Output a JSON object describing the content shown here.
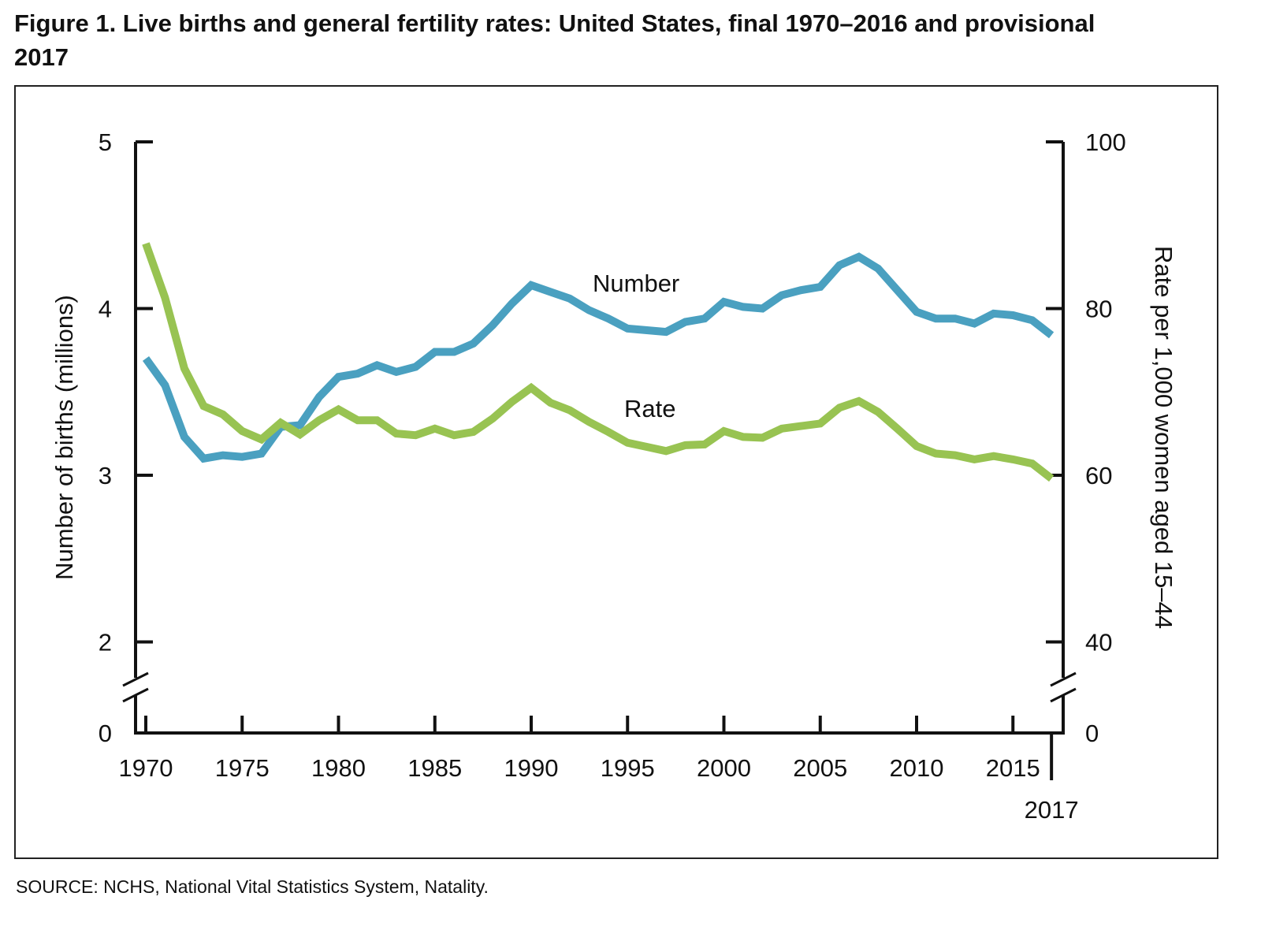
{
  "title": "Figure 1. Live births and general fertility rates: United States, final 1970–2016 and provisional 2017",
  "source": "SOURCE: NCHS, National Vital Statistics System, Natality.",
  "chart_data": {
    "type": "line",
    "title": "Figure 1. Live births and general fertility rates: United States, final 1970–2016 and provisional 2017",
    "xlabel": "",
    "ylabel_left": "Number of births (millions)",
    "ylabel_right": "Rate per 1,000 women aged 15–44",
    "x_ticks": [
      "1970",
      "1975",
      "1980",
      "1985",
      "1990",
      "1995",
      "2000",
      "2005",
      "2010",
      "2015"
    ],
    "x_extra_tick": "2017",
    "y_left_ticks": [
      "0",
      "2",
      "3",
      "4",
      "5"
    ],
    "y_right_ticks": [
      "0",
      "40",
      "60",
      "80",
      "100"
    ],
    "y_left_range": [
      2,
      5
    ],
    "y_right_range": [
      40,
      100
    ],
    "axis_break": true,
    "grid": false,
    "x": [
      1970,
      1971,
      1972,
      1973,
      1974,
      1975,
      1976,
      1977,
      1978,
      1979,
      1980,
      1981,
      1982,
      1983,
      1984,
      1985,
      1986,
      1987,
      1988,
      1989,
      1990,
      1991,
      1992,
      1993,
      1994,
      1995,
      1996,
      1997,
      1998,
      1999,
      2000,
      2001,
      2002,
      2003,
      2004,
      2005,
      2006,
      2007,
      2008,
      2009,
      2010,
      2011,
      2012,
      2013,
      2014,
      2015,
      2016,
      2017
    ],
    "series": [
      {
        "name": "Number",
        "axis": "left",
        "color": "#4aa0c0",
        "values": [
          3.7,
          3.54,
          3.23,
          3.1,
          3.12,
          3.11,
          3.13,
          3.29,
          3.3,
          3.47,
          3.59,
          3.61,
          3.66,
          3.62,
          3.65,
          3.74,
          3.74,
          3.79,
          3.9,
          4.03,
          4.14,
          4.1,
          4.06,
          3.99,
          3.94,
          3.88,
          3.87,
          3.86,
          3.92,
          3.94,
          4.04,
          4.01,
          4.0,
          4.08,
          4.11,
          4.13,
          4.26,
          4.31,
          4.24,
          4.11,
          3.98,
          3.94,
          3.94,
          3.91,
          3.97,
          3.96,
          3.93,
          3.84
        ]
      },
      {
        "name": "Rate",
        "axis": "right",
        "color": "#98c352",
        "values": [
          87.8,
          81.3,
          72.8,
          68.3,
          67.3,
          65.3,
          64.3,
          66.3,
          64.9,
          66.6,
          67.9,
          66.6,
          66.6,
          65.0,
          64.8,
          65.6,
          64.8,
          65.2,
          66.8,
          68.8,
          70.5,
          68.7,
          67.8,
          66.4,
          65.2,
          63.9,
          63.4,
          62.9,
          63.6,
          63.7,
          65.3,
          64.6,
          64.5,
          65.6,
          65.9,
          66.2,
          68.1,
          68.9,
          67.6,
          65.6,
          63.5,
          62.6,
          62.4,
          61.9,
          62.3,
          61.9,
          61.4,
          59.6
        ]
      }
    ]
  }
}
